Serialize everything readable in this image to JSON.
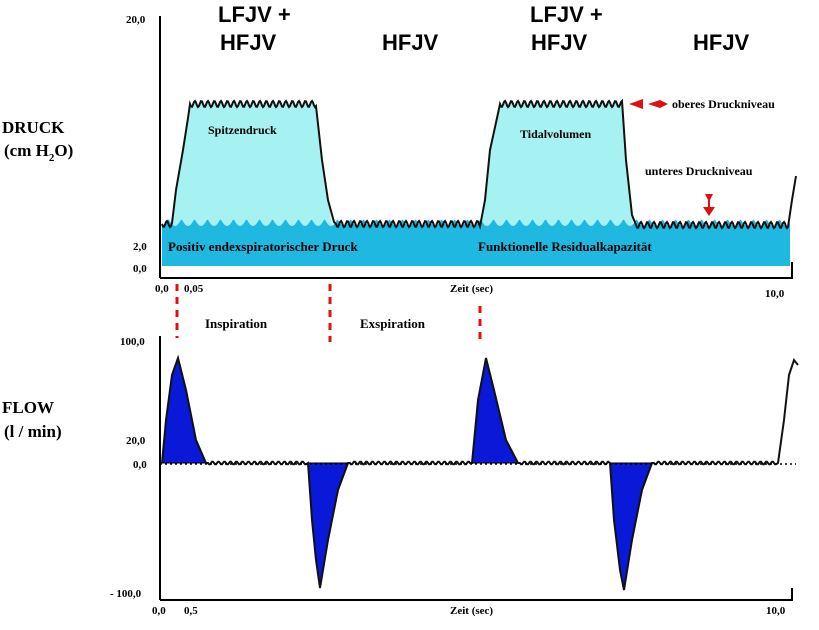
{
  "headers": {
    "phase1": [
      "LFJV +",
      "HFJV"
    ],
    "phase2": "HFJV",
    "phase3": [
      "LFJV +",
      "HFJV"
    ],
    "phase4": "HFJV"
  },
  "pressure": {
    "title_line1": "DRUCK",
    "title_line2_pre": "(cm H",
    "title_line2_sub": "2",
    "title_line2_post": "O)",
    "y_ticks": [
      "20,0",
      "2,0",
      "0,0"
    ],
    "x_ticks": [
      "0,0",
      "0,05",
      "10,0"
    ],
    "x_label": "Zeit (sec)",
    "labels": {
      "peak": "Spitzendruck",
      "tidal": "Tidalvolumen",
      "peep": "Positiv endexspiratorischer Druck",
      "frc": "Funktionelle Residualkapazität",
      "upper": "oberes Druckniveau",
      "lower": "unteres Druckniveau"
    }
  },
  "phases": {
    "inspiration": "Inspiration",
    "expiration": "Exspiration"
  },
  "flow": {
    "title_line1": "FLOW",
    "title_line2": "(l / min)",
    "y_ticks": [
      "100,0",
      "20,0",
      "0,0",
      "- 100,0"
    ],
    "x_ticks": [
      "0,0",
      "0,5",
      "10,0"
    ],
    "x_label": "Zeit (sec)"
  },
  "colors": {
    "cyan_light": "#a6f2f2",
    "cyan_dark": "#1fb8e0",
    "flow_blue": "#0a18d8",
    "marker_red": "#e01010"
  }
}
